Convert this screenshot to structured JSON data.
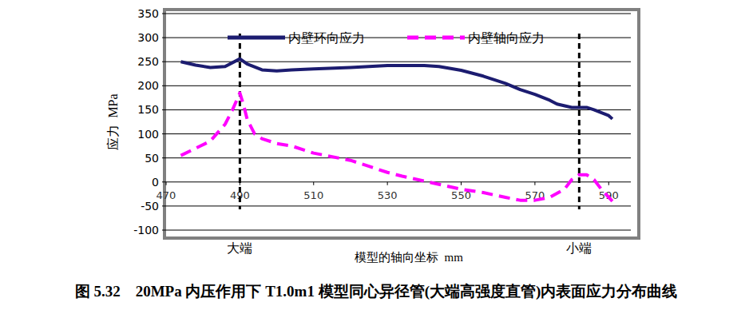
{
  "chart_data": {
    "type": "line",
    "title": "图 5.32    20MPa 内压作用下 T1.0m1 模型同心异径管(大端高强度直管)内表面应力分布曲线",
    "x_label": "模型的轴向坐标  mm",
    "y_label": "应力  MPa",
    "xlim": [
      470,
      596
    ],
    "xticks": [
      470,
      490,
      510,
      530,
      550,
      570,
      590
    ],
    "ylim": [
      -100,
      350
    ],
    "yticks": [
      -100,
      -50,
      0,
      50,
      100,
      150,
      200,
      250,
      300,
      350
    ],
    "grid": true,
    "legend": "top",
    "annotations": [
      {
        "x": 490,
        "text": "大端"
      },
      {
        "x": 582,
        "text": "小端"
      }
    ],
    "series": [
      {
        "name": "内壁环向应力",
        "color": "#1c1c70",
        "line_style": "solid",
        "x": [
          474,
          478,
          482,
          486,
          490,
          492,
          496,
          500,
          504,
          510,
          520,
          530,
          540,
          544,
          550,
          556,
          562,
          566,
          570,
          574,
          576,
          580,
          584,
          586,
          590,
          591
        ],
        "values": [
          250,
          243,
          238,
          240,
          256,
          245,
          233,
          231,
          233,
          235,
          238,
          242,
          242,
          240,
          232,
          220,
          205,
          192,
          182,
          170,
          162,
          155,
          155,
          150,
          138,
          131
        ]
      },
      {
        "name": "内壁轴向应力",
        "color": "#ff00ff",
        "line_style": "dashed",
        "x": [
          474,
          478,
          482,
          486,
          488,
          490,
          491,
          492,
          494,
          496,
          500,
          504,
          510,
          520,
          526,
          530,
          534,
          540,
          544,
          550,
          556,
          562,
          566,
          570,
          574,
          578,
          580,
          582,
          584,
          586,
          588,
          591
        ],
        "values": [
          55,
          70,
          85,
          120,
          150,
          185,
          160,
          130,
          100,
          90,
          80,
          75,
          60,
          45,
          30,
          20,
          12,
          2,
          -5,
          -15,
          -22,
          -32,
          -38,
          -38,
          -32,
          -15,
          5,
          15,
          15,
          5,
          -15,
          -40
        ]
      }
    ]
  }
}
